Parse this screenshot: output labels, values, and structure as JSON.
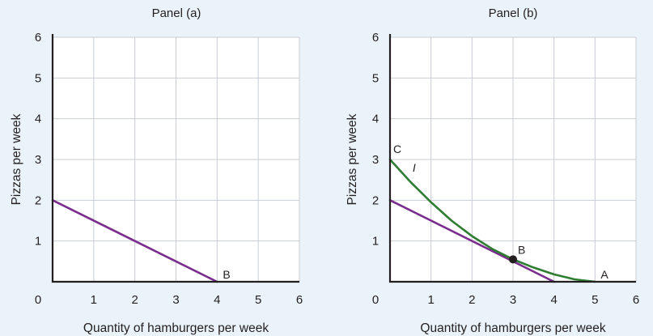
{
  "chart_data": [
    {
      "type": "line",
      "title": "Panel (a)",
      "xlabel": "Quantity of hamburgers per week",
      "ylabel": "Pizzas per week",
      "xlim": [
        0,
        6
      ],
      "ylim": [
        0,
        6
      ],
      "x_ticks": [
        "0",
        "1",
        "2",
        "3",
        "4",
        "5",
        "6"
      ],
      "y_ticks": [
        "1",
        "2",
        "3",
        "4",
        "5",
        "6"
      ],
      "grid": true,
      "series": [
        {
          "color": "#7b2d8e",
          "x": [
            0,
            4
          ],
          "y": [
            2,
            0
          ]
        }
      ],
      "points": [
        {
          "label": "B",
          "x": 4,
          "y": 0,
          "marker": false
        }
      ],
      "annotations": []
    },
    {
      "type": "line",
      "title": "Panel (b)",
      "xlabel": "Quantity of hamburgers per week",
      "ylabel": "Pizzas per week",
      "xlim": [
        0,
        6
      ],
      "ylim": [
        0,
        6
      ],
      "x_ticks": [
        "0",
        "1",
        "2",
        "3",
        "4",
        "5",
        "6"
      ],
      "y_ticks": [
        "1",
        "2",
        "3",
        "4",
        "5",
        "6"
      ],
      "grid": true,
      "series": [
        {
          "color": "#7b2d8e",
          "x": [
            0,
            4
          ],
          "y": [
            2,
            0
          ]
        },
        {
          "color": "#2e7d32",
          "x": [
            0,
            0.5,
            1,
            1.5,
            2,
            2.5,
            3,
            3.5,
            4,
            4.5,
            5
          ],
          "y": [
            3,
            2.45,
            1.95,
            1.5,
            1.12,
            0.8,
            0.55,
            0.35,
            0.18,
            0.06,
            0
          ]
        }
      ],
      "points": [
        {
          "label": "C",
          "x": 0,
          "y": 3,
          "marker": false
        },
        {
          "label": "B",
          "x": 3,
          "y": 0.55,
          "marker": true
        },
        {
          "label": "A",
          "x": 5,
          "y": 0,
          "marker": false
        }
      ],
      "annotations": [
        {
          "label": "I",
          "x": 0.55,
          "y": 2.7
        }
      ]
    }
  ]
}
